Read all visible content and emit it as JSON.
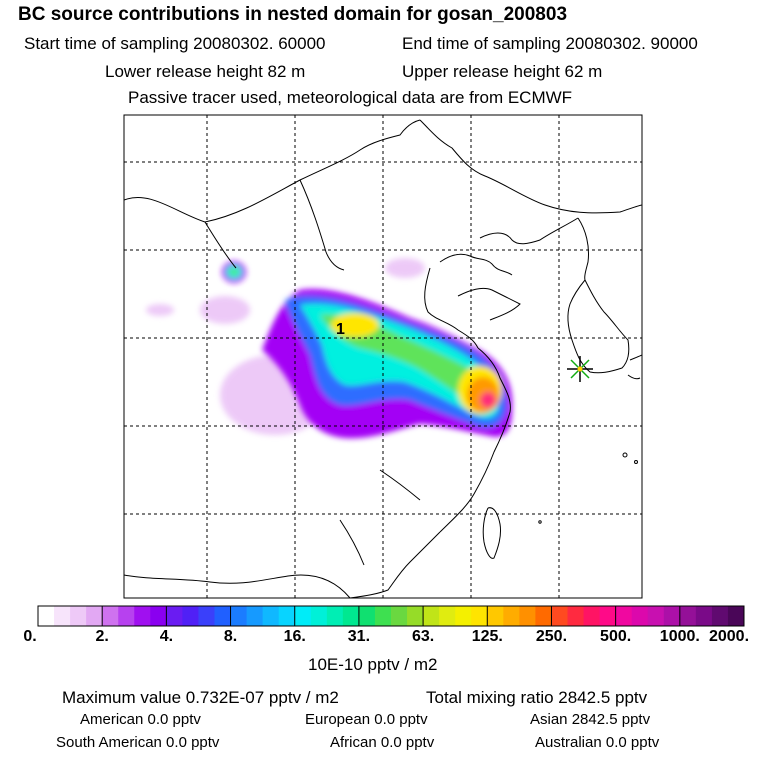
{
  "header": {
    "title": "BC  source contributions in nested domain for gosan_200803",
    "start_label": "Start time of sampling 20080302. 60000",
    "end_label": "End time of sampling 20080302. 90000",
    "lower_label": "Lower release height   82 m",
    "upper_label": "Upper release height   62 m",
    "note": "Passive tracer used, meteorological data are from ECMWF"
  },
  "map": {
    "marker_label": "1",
    "receptor_icon": "star-asterisk-icon",
    "colors": {
      "hot": "#ff2a7a",
      "orange": "#ff9a00",
      "yellow": "#ffe600",
      "green": "#5fe35a",
      "cyan": "#00f0e0",
      "blue": "#2f6dff",
      "violet": "#a300f5",
      "lavender": "#e7b8f5"
    }
  },
  "colorbar": {
    "labels": [
      "0.",
      "2.",
      "4.",
      "8.",
      "16.",
      "31.",
      "63.",
      "125.",
      "250.",
      "500.",
      "1000.",
      "2000."
    ],
    "colors": [
      "#ffffff",
      "#f7e4fb",
      "#eec9f7",
      "#e2a8f3",
      "#cf72ef",
      "#b741ef",
      "#a010f0",
      "#8a00f0",
      "#6a1cf2",
      "#5020f6",
      "#3a40fa",
      "#2060ff",
      "#1b7cff",
      "#169aff",
      "#10b8ff",
      "#08d4ff",
      "#00ecf8",
      "#00f0d8",
      "#00eeb4",
      "#00e890",
      "#10e070",
      "#3ee050",
      "#6ad840",
      "#96dc28",
      "#c0e418",
      "#e0ec10",
      "#f4f000",
      "#ffe400",
      "#ffc800",
      "#ffac00",
      "#ff9000",
      "#ff6a00",
      "#ff4a20",
      "#ff2a40",
      "#ff1464",
      "#ff0a88",
      "#f008a0",
      "#dc08ac",
      "#c810b0",
      "#ac10a8",
      "#941098",
      "#7a0a88",
      "#600a70",
      "#4a0658"
    ],
    "units": "10E-10 pptv / m2"
  },
  "stats": {
    "max_label": "Maximum value  0.732E-07 pptv / m2",
    "total_label": "Total mixing ratio    2842.5 pptv",
    "american": "American        0.0 pptv",
    "european": "European        0.0 pptv",
    "asian": "Asian    2842.5 pptv",
    "south_american": "South American        0.0 pptv",
    "african": "African        0.0 pptv",
    "australian": "Australian        0.0 pptv"
  },
  "chart_data": {
    "type": "heatmap",
    "title": "BC  source contributions in nested domain for gosan_200803",
    "colorbar_ticks": [
      0,
      2,
      4,
      8,
      16,
      31,
      63,
      125,
      250,
      500,
      1000,
      2000
    ],
    "units": "10E-10 pptv / m2",
    "maximum_value": "0.732E-07 pptv / m2",
    "total_mixing_ratio_pptv": 2842.5,
    "regional_contributions_pptv": {
      "American": 0.0,
      "European": 0.0,
      "Asian": 2842.5,
      "South American": 0.0,
      "African": 0.0,
      "Australian": 0.0
    },
    "grid": true
  }
}
